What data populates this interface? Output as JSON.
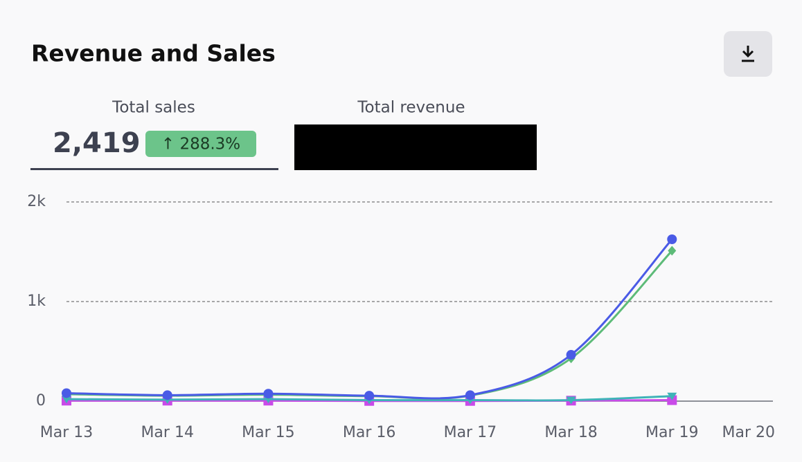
{
  "header": {
    "title": "Revenue and Sales",
    "kpis": [
      {
        "label": "Total sales",
        "value": "2,419",
        "change": "↑ 288.3%"
      },
      {
        "label": "Total revenue"
      }
    ]
  },
  "chart_data": {
    "type": "line",
    "categories": [
      "Mar 13",
      "Mar 14",
      "Mar 15",
      "Mar 16",
      "Mar 17",
      "Mar 18",
      "Mar 19",
      "Mar 20"
    ],
    "series": [
      {
        "color": "#c94be8",
        "marker": "square",
        "values": [
          5,
          5,
          5,
          2,
          2,
          5,
          10,
          null
        ]
      },
      {
        "color": "#3fb3b8",
        "marker": "triangle",
        "values": [
          20,
          15,
          20,
          10,
          10,
          10,
          50,
          null
        ]
      },
      {
        "color": "#5dbb78",
        "marker": "diamond",
        "values": [
          70,
          55,
          65,
          50,
          55,
          430,
          1510,
          null
        ]
      },
      {
        "color": "#4a5be6",
        "marker": "circle",
        "values": [
          80,
          60,
          75,
          55,
          60,
          465,
          1625,
          null
        ]
      }
    ],
    "ylim": [
      0,
      2000
    ],
    "yticks": [
      0,
      {
        "value": 1000,
        "label": "1k"
      },
      {
        "value": 2000,
        "label": "2k"
      }
    ],
    "grid": true
  }
}
